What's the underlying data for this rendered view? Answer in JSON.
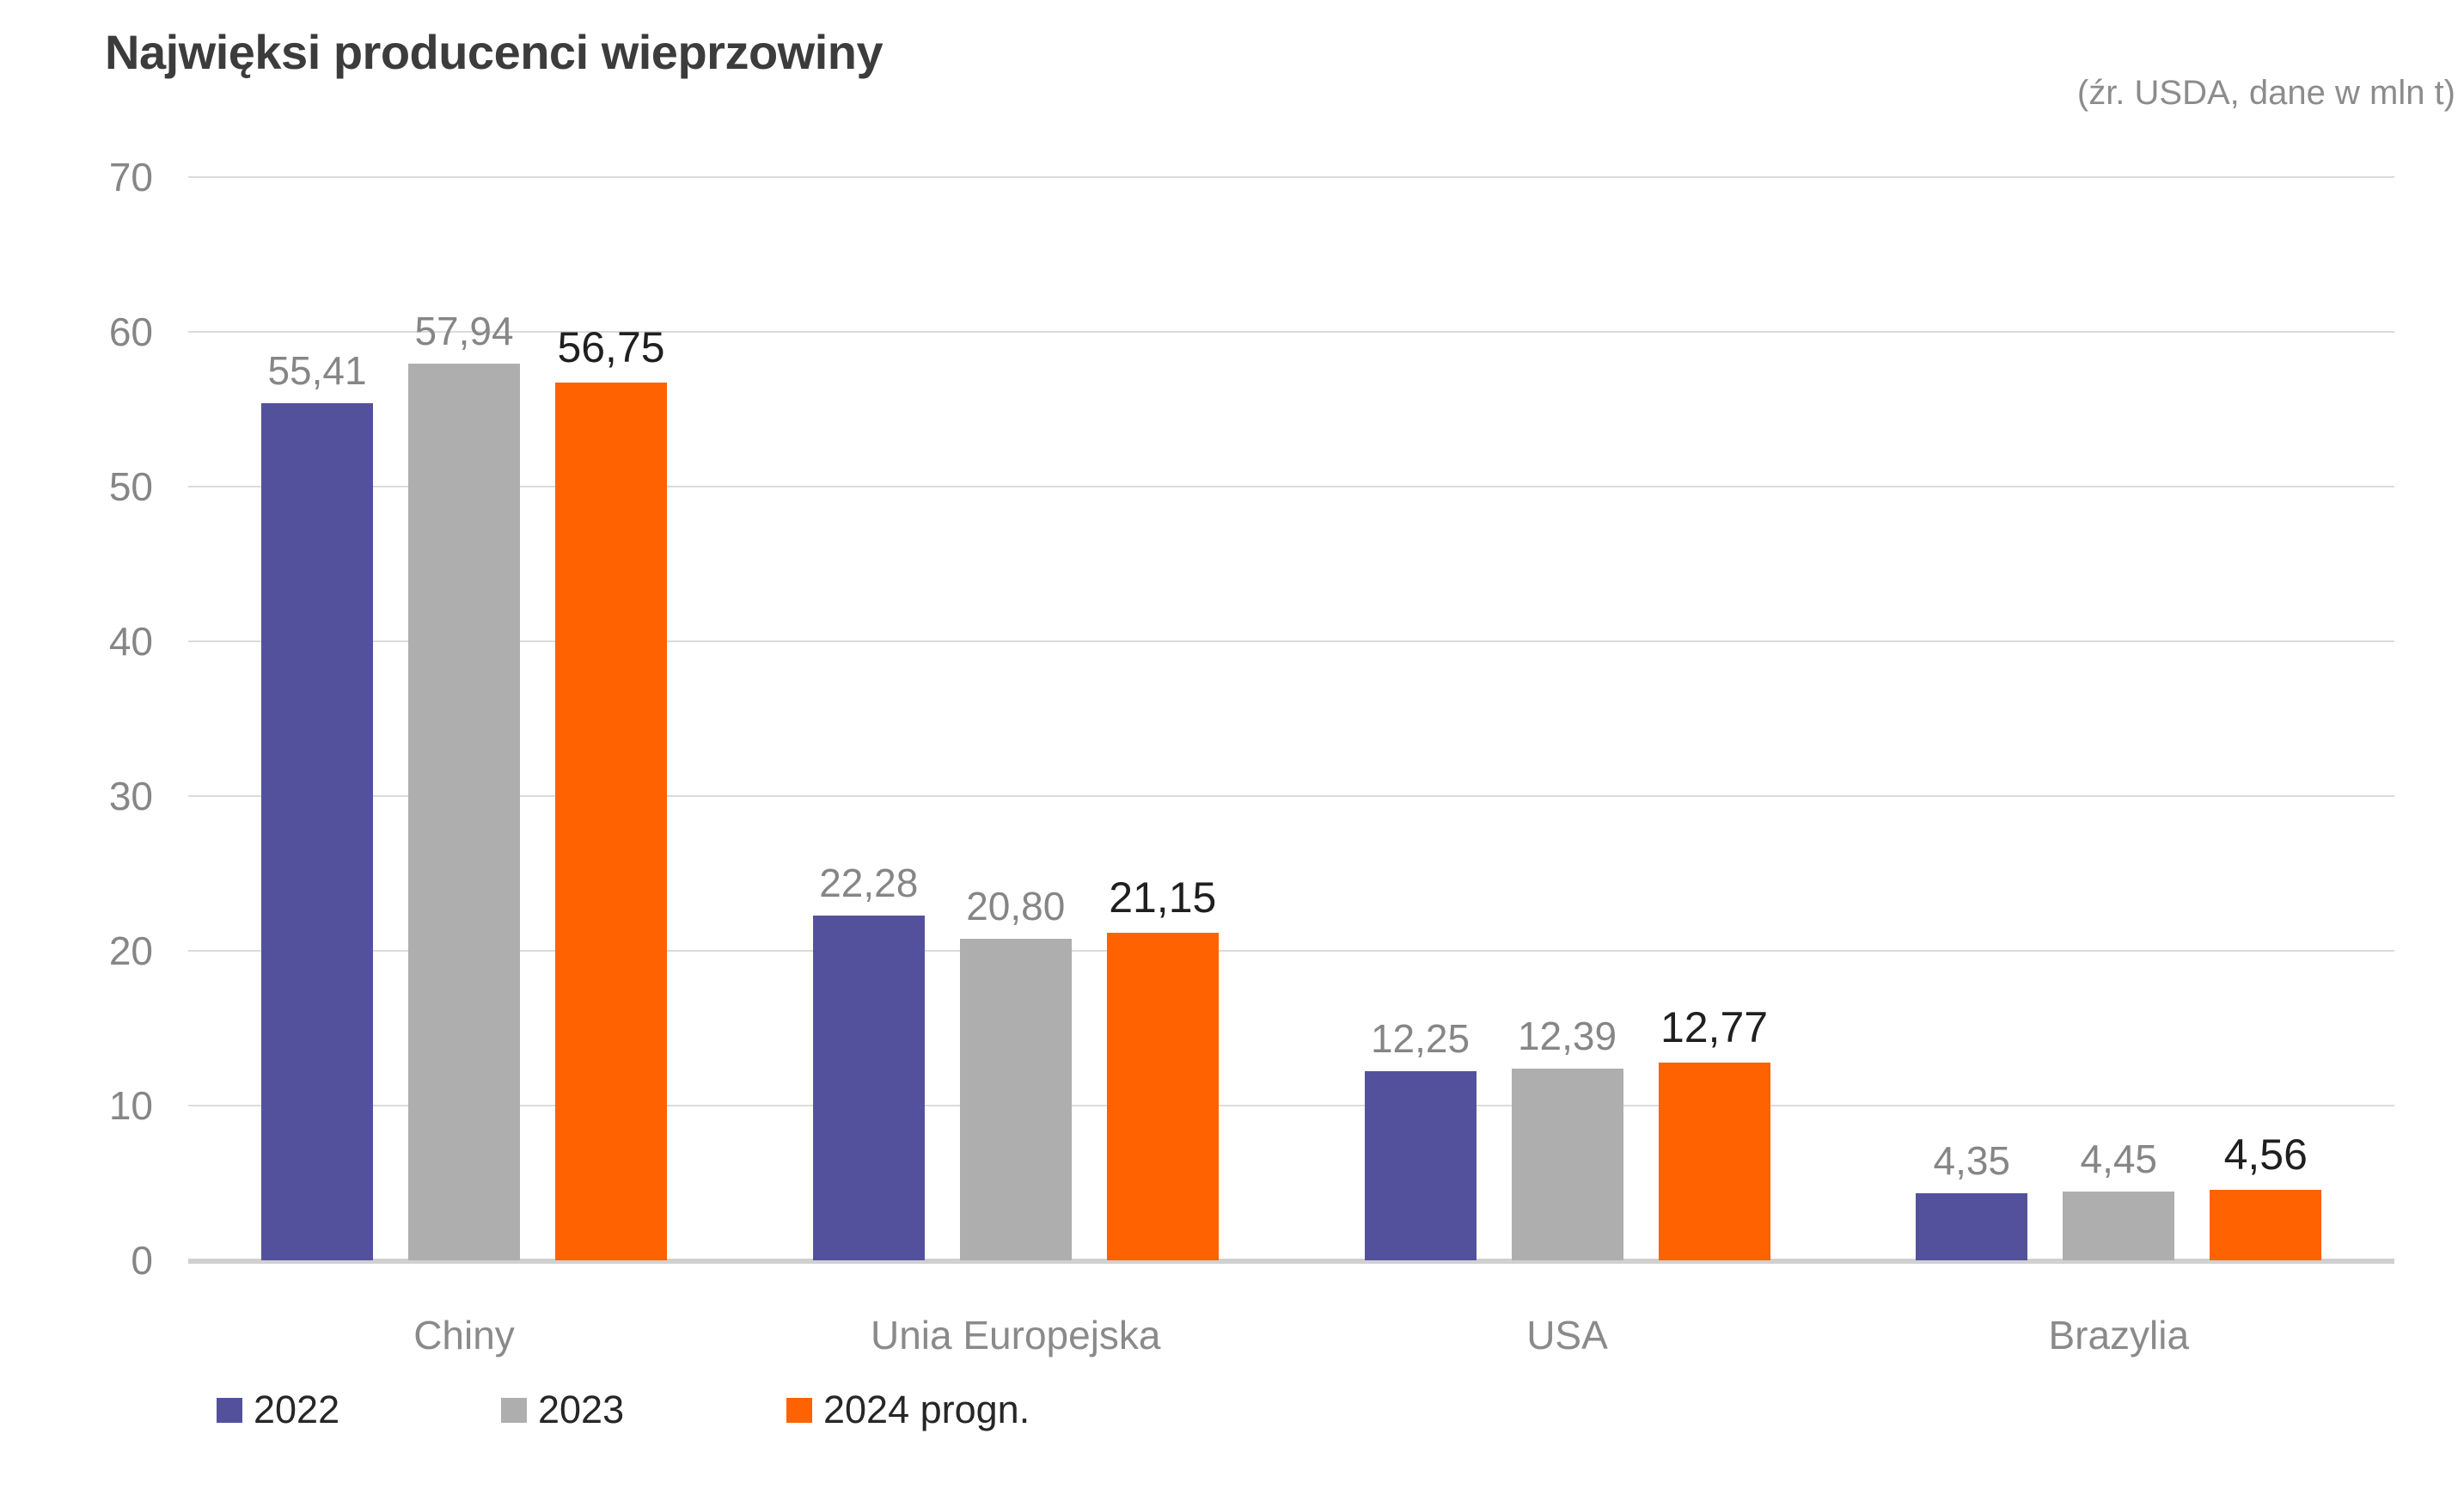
{
  "header": {
    "title": "Najwięksi producenci wieprzowiny",
    "source_note": "(źr. USDA, dane w mln t)"
  },
  "chart_data": {
    "type": "bar",
    "title": "Najwięksi producenci wieprzowiny",
    "source_label": "(źr. USDA, dane w mln t)",
    "unit": "mln t",
    "categories": [
      "Chiny",
      "Unia Europejska",
      "USA",
      "Brazylia"
    ],
    "series": [
      {
        "name": "2022",
        "color": "#54519C",
        "pattern": "solid",
        "values": [
          55.41,
          22.28,
          12.25,
          4.35
        ]
      },
      {
        "name": "2023",
        "color": "#AEAEAE",
        "pattern": "dots",
        "values": [
          57.94,
          20.8,
          12.39,
          4.45
        ]
      },
      {
        "name": "2024 progn.",
        "color": "#FF6200",
        "pattern": "solid",
        "values": [
          56.75,
          21.15,
          12.77,
          4.56
        ]
      }
    ],
    "value_labels": [
      [
        "55,41",
        "22,28",
        "12,25",
        "4,35"
      ],
      [
        "57,94",
        "20,80",
        "12,39",
        "4,45"
      ],
      [
        "56,75",
        "21,15",
        "12,77",
        "4,56"
      ]
    ],
    "ylim": [
      0,
      70
    ],
    "ytick_step": 10,
    "yticks": [
      "0",
      "10",
      "20",
      "30",
      "40",
      "50",
      "60",
      "70"
    ],
    "grid": true,
    "decimal_separator": ",",
    "legend_position": "bottom-left"
  },
  "palette": {
    "title_color": "#3C3C3C",
    "source_color": "#8C8C8C",
    "axis_label_color": "#868686",
    "category_label_color": "#8A8A8A",
    "value_label_color": "#868686",
    "value_label_final_color": "#1F1F1F",
    "gridline_color": "#DBDBDB",
    "baseline_color": "#D0D0D0",
    "legend_text_color": "#262626"
  }
}
